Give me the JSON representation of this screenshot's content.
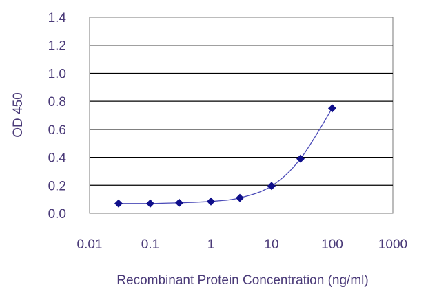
{
  "chart_data": {
    "type": "line",
    "title": "",
    "xlabel": "Recombinant Protein Concentration  (ng/ml)",
    "ylabel": "OD 450",
    "x_scale": "log",
    "xlim": [
      0.01,
      1000
    ],
    "ylim": [
      0,
      1.4
    ],
    "x_ticks": [
      "0.01",
      "0.1",
      "1",
      "10",
      "100",
      "1000"
    ],
    "y_ticks": [
      "0.0",
      "0.2",
      "0.4",
      "0.6",
      "0.8",
      "1.0",
      "1.2",
      "1.4"
    ],
    "grid": "horizontal",
    "legend": "none",
    "series": [
      {
        "x": [
          0.03,
          0.1,
          0.3,
          1,
          3,
          10,
          30,
          100
        ],
        "y": [
          0.07,
          0.07,
          0.075,
          0.085,
          0.11,
          0.195,
          0.39,
          0.75
        ],
        "marker": "diamond",
        "color": "#0f0f8a"
      }
    ],
    "colors": {
      "line": "#4a4ab8",
      "marker": "#0f0f8a",
      "grid": "#000000",
      "text": "#4a3a78"
    }
  }
}
